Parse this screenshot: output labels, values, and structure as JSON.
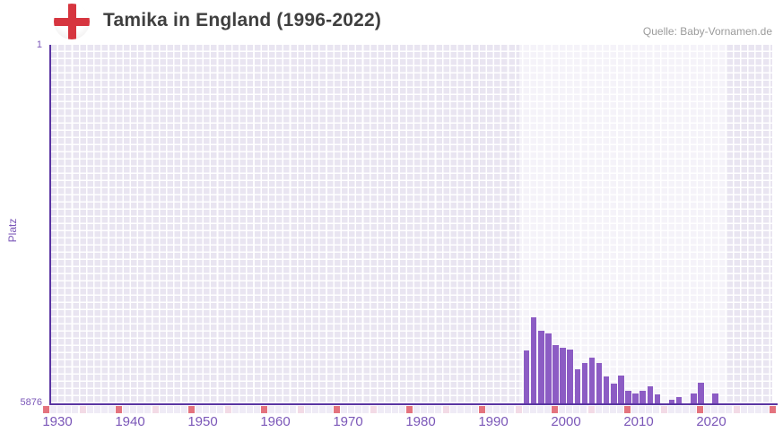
{
  "header": {
    "title": "Tamika in England (1996-2022)",
    "source": "Quelle: Baby-Vornamen.de",
    "flag": "england-st-george-cross"
  },
  "chart_data": {
    "type": "bar",
    "title": "Tamika in England (1996-2022)",
    "xlabel": "",
    "ylabel": "Platz",
    "y_axis": {
      "top_label": "1",
      "bottom_label": "5876",
      "min": 1,
      "max": 5876,
      "inverted": true,
      "note": "rank 1 at top, bars grow upward from worst rank 5876"
    },
    "x_axis": {
      "start": 1930,
      "end": 2030,
      "decade_labels": [
        "1930",
        "1940",
        "1950",
        "1960",
        "1970",
        "1980",
        "1990",
        "2000",
        "2010",
        "2020"
      ],
      "tick_marks": "red square each decade, pink square each half-decade",
      "highlight_band_years": [
        1995.5,
        2024
      ]
    },
    "grid": true,
    "legend": null,
    "series": [
      {
        "name": "Platz",
        "x": [
          1996,
          1997,
          1998,
          1999,
          2000,
          2001,
          2002,
          2003,
          2004,
          2005,
          2006,
          2007,
          2008,
          2009,
          2010,
          2011,
          2012,
          2013,
          2014,
          2015,
          2016,
          2017,
          2018,
          2019,
          2020,
          2021,
          2022
        ],
        "values": [
          5010,
          4460,
          4680,
          4730,
          4920,
          4960,
          5000,
          5320,
          5220,
          5130,
          5220,
          5440,
          5560,
          5420,
          5670,
          5720,
          5670,
          5590,
          5730,
          null,
          5815,
          5775,
          null,
          5720,
          5545,
          null,
          5720
        ]
      }
    ],
    "colors": {
      "bar": "#8c5cc4",
      "axis": "#5a35a2",
      "label": "#7b57b8",
      "plot_bg": "#e9e5f1",
      "grid_line": "#ffffff",
      "tick_default": "#efebf6",
      "tick_half_decade": "#f3dbe6",
      "tick_decade": "#e4737e",
      "title": "#3f3f3f",
      "source": "#9b9b9b",
      "flag_cross": "#d6353f"
    }
  }
}
